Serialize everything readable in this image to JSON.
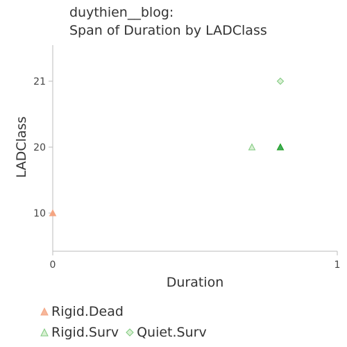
{
  "chart_data": {
    "type": "scatter",
    "title_line1": "duythien__blog:",
    "title_line2": "Span of Duration by LADClass",
    "xlabel": "Duration",
    "ylabel": "LADClass",
    "x_ticks": [
      "0",
      "1"
    ],
    "y_ticks": [
      "10",
      "20",
      "21"
    ],
    "y_categories": [
      "10",
      "20",
      "21"
    ],
    "xlim": [
      0,
      1
    ],
    "grid": false,
    "legend_position": "bottom",
    "series": [
      {
        "name": "Rigid.Dead",
        "marker": "triangle",
        "color": "#f4a582",
        "points": [
          {
            "x": 0.0,
            "y": "10"
          }
        ]
      },
      {
        "name": "Rigid.Surv",
        "marker": "triangle",
        "color": "#7fc97f",
        "points": [
          {
            "x": 0.7,
            "y": "20"
          },
          {
            "x": 0.8,
            "y": "20"
          }
        ]
      },
      {
        "name": "Quiet.Surv",
        "marker": "diamond",
        "color": "#7fc97f",
        "points": [
          {
            "x": 0.8,
            "y": "21"
          }
        ]
      }
    ],
    "highlight": {
      "x": 0.8,
      "y": "20",
      "color": "#1a9e1a"
    }
  }
}
